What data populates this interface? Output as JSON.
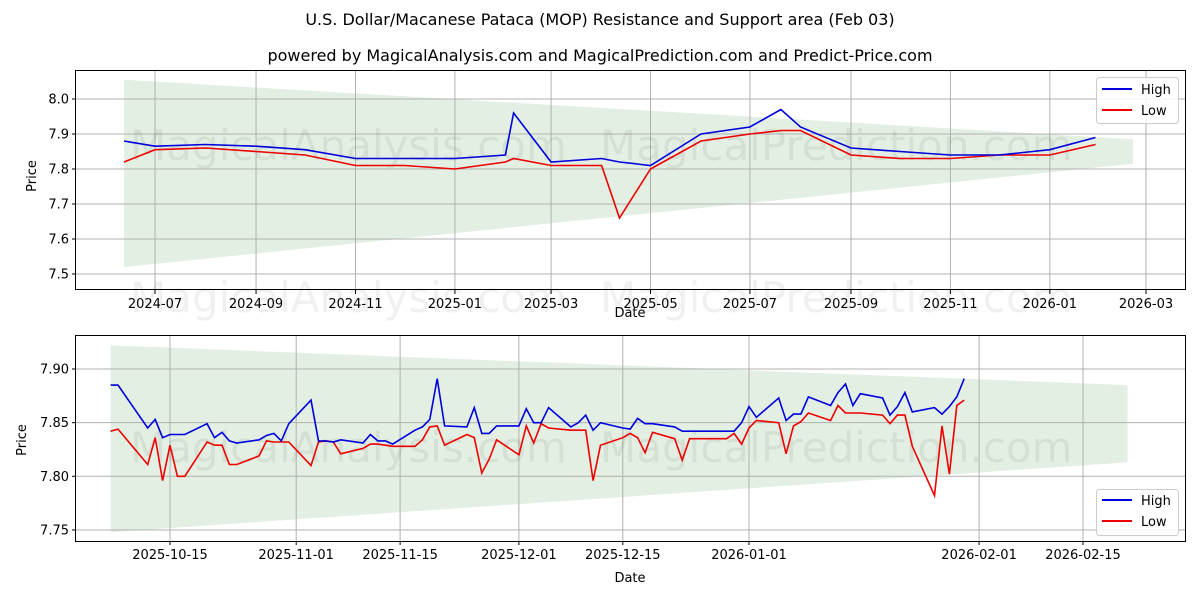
{
  "title": "U.S. Dollar/Macanese Pataca (MOP) Resistance and Support area (Feb 03)",
  "subtitle": "powered by MagicalAnalysis.com and MagicalPrediction.com and Predict-Price.com",
  "watermark": "MagicalAnalysis.com   MagicalPrediction.com",
  "colors": {
    "high": "#0000dd",
    "low": "#ee0000",
    "band": "#e3efe3",
    "grid": "#b0b0b0"
  },
  "top": {
    "xlabel": "Date",
    "ylabel": "Price",
    "yticks": [
      "7.5",
      "7.6",
      "7.7",
      "7.8",
      "7.9",
      "8.0"
    ],
    "xticks": [
      "2024-07",
      "2024-09",
      "2024-11",
      "2025-01",
      "2025-03",
      "2025-05",
      "2025-07",
      "2025-09",
      "2025-11",
      "2026-01",
      "2026-03"
    ],
    "legend": {
      "high": "High",
      "low": "Low"
    }
  },
  "bottom": {
    "xlabel": "Date",
    "ylabel": "Price",
    "yticks": [
      "7.75",
      "7.80",
      "7.85",
      "7.90"
    ],
    "xticks": [
      "2025-10-15",
      "2025-11-01",
      "2025-11-15",
      "2025-12-01",
      "2025-12-15",
      "2026-01-01",
      "2026-02-01",
      "2026-02-15"
    ],
    "legend": {
      "high": "High",
      "low": "Low"
    }
  },
  "chart_data": [
    {
      "type": "line",
      "title": "U.S. Dollar/Macanese Pataca (MOP) Resistance and Support area (Feb 03)",
      "xlabel": "Date",
      "ylabel": "Price",
      "ylim": [
        7.49,
        8.09
      ],
      "x": [
        "2024-06-12",
        "2024-07-01",
        "2024-08-01",
        "2024-09-01",
        "2024-10-01",
        "2024-11-01",
        "2024-12-01",
        "2025-01-01",
        "2025-02-01",
        "2025-02-06",
        "2025-03-01",
        "2025-04-01",
        "2025-04-12",
        "2025-05-01",
        "2025-06-01",
        "2025-07-01",
        "2025-07-20",
        "2025-08-01",
        "2025-09-01",
        "2025-10-01",
        "2025-11-01",
        "2025-12-01",
        "2026-01-01",
        "2026-01-29"
      ],
      "series": [
        {
          "name": "High",
          "values": [
            7.88,
            7.865,
            7.87,
            7.865,
            7.855,
            7.83,
            7.83,
            7.83,
            7.84,
            7.96,
            7.82,
            7.83,
            7.82,
            7.81,
            7.9,
            7.92,
            7.97,
            7.92,
            7.86,
            7.85,
            7.84,
            7.84,
            7.855,
            7.89
          ]
        },
        {
          "name": "Low",
          "values": [
            7.82,
            7.855,
            7.86,
            7.85,
            7.84,
            7.81,
            7.81,
            7.8,
            7.82,
            7.83,
            7.81,
            7.81,
            7.66,
            7.8,
            7.88,
            7.9,
            7.91,
            7.91,
            7.84,
            7.83,
            7.83,
            7.84,
            7.84,
            7.87
          ]
        }
      ],
      "band": {
        "x_start": "2024-06-12",
        "x_end": "2026-02-21",
        "upper": [
          8.055,
          7.885
        ],
        "lower": [
          7.52,
          7.815
        ],
        "label": "Resistance and Support area"
      },
      "legend_position": "upper right",
      "grid": true
    },
    {
      "type": "line",
      "title": "U.S. Dollar/Macanese Pataca (MOP) Resistance and Support area (Feb 03) - zoom",
      "xlabel": "Date",
      "ylabel": "Price",
      "ylim": [
        7.74,
        7.93
      ],
      "x": [
        "2025-10-07",
        "2025-10-08",
        "2025-10-12",
        "2025-10-13",
        "2025-10-14",
        "2025-10-15",
        "2025-10-16",
        "2025-10-17",
        "2025-10-20",
        "2025-10-21",
        "2025-10-22",
        "2025-10-23",
        "2025-10-24",
        "2025-10-27",
        "2025-10-28",
        "2025-10-29",
        "2025-10-30",
        "2025-10-31",
        "2025-11-03",
        "2025-11-04",
        "2025-11-05",
        "2025-11-06",
        "2025-11-07",
        "2025-11-10",
        "2025-11-11",
        "2025-11-12",
        "2025-11-13",
        "2025-11-14",
        "2025-11-17",
        "2025-11-18",
        "2025-11-19",
        "2025-11-20",
        "2025-11-21",
        "2025-11-24",
        "2025-11-25",
        "2025-11-26",
        "2025-11-27",
        "2025-11-28",
        "2025-12-01",
        "2025-12-02",
        "2025-12-03",
        "2025-12-04",
        "2025-12-05",
        "2025-12-08",
        "2025-12-09",
        "2025-12-10",
        "2025-12-11",
        "2025-12-12",
        "2025-12-15",
        "2025-12-16",
        "2025-12-17",
        "2025-12-18",
        "2025-12-19",
        "2025-12-22",
        "2025-12-23",
        "2025-12-24",
        "2025-12-29",
        "2025-12-30",
        "2025-12-31",
        "2026-01-01",
        "2026-01-02",
        "2026-01-05",
        "2026-01-06",
        "2026-01-07",
        "2026-01-08",
        "2026-01-09",
        "2026-01-12",
        "2026-01-13",
        "2026-01-14",
        "2026-01-15",
        "2026-01-16",
        "2026-01-19",
        "2026-01-20",
        "2026-01-21",
        "2026-01-22",
        "2026-01-23",
        "2026-01-26",
        "2026-01-27",
        "2026-01-28",
        "2026-01-29",
        "2026-01-30"
      ],
      "series": [
        {
          "name": "High",
          "values": [
            7.885,
            7.885,
            7.845,
            7.853,
            7.836,
            7.839,
            7.839,
            7.839,
            7.849,
            7.836,
            7.841,
            7.833,
            7.831,
            7.834,
            7.838,
            7.84,
            7.833,
            7.849,
            7.871,
            7.833,
            7.833,
            7.832,
            7.834,
            7.831,
            7.839,
            7.833,
            7.833,
            7.83,
            7.843,
            7.846,
            7.853,
            7.891,
            7.847,
            7.846,
            7.864,
            7.84,
            7.84,
            7.847,
            7.847,
            7.863,
            7.85,
            7.85,
            7.864,
            7.846,
            7.85,
            7.857,
            7.843,
            7.85,
            7.845,
            7.844,
            7.854,
            7.849,
            7.849,
            7.846,
            7.842,
            7.842,
            7.842,
            7.842,
            7.85,
            7.865,
            7.855,
            7.873,
            7.852,
            7.858,
            7.858,
            7.874,
            7.866,
            7.878,
            7.886,
            7.866,
            7.877,
            7.873,
            7.857,
            7.865,
            7.878,
            7.86,
            7.864,
            7.858,
            7.865,
            7.874,
            7.891
          ]
        },
        {
          "name": "Low",
          "values": [
            7.842,
            7.844,
            7.811,
            7.836,
            7.796,
            7.829,
            7.8,
            7.8,
            7.832,
            7.829,
            7.829,
            7.811,
            7.811,
            7.819,
            7.833,
            7.832,
            7.832,
            7.832,
            7.81,
            7.832,
            7.833,
            7.832,
            7.821,
            7.826,
            7.83,
            7.83,
            7.829,
            7.828,
            7.828,
            7.834,
            7.846,
            7.847,
            7.829,
            7.839,
            7.836,
            7.803,
            7.816,
            7.834,
            7.82,
            7.847,
            7.831,
            7.849,
            7.845,
            7.843,
            7.843,
            7.843,
            7.796,
            7.829,
            7.836,
            7.84,
            7.836,
            7.822,
            7.841,
            7.835,
            7.815,
            7.835,
            7.835,
            7.84,
            7.83,
            7.845,
            7.852,
            7.85,
            7.821,
            7.847,
            7.851,
            7.859,
            7.852,
            7.866,
            7.859,
            7.859,
            7.859,
            7.857,
            7.849,
            7.857,
            7.857,
            7.828,
            7.782,
            7.847,
            7.802,
            7.866,
            7.871
          ]
        }
      ],
      "band": {
        "x_start": "2025-10-07",
        "x_end": "2026-02-21",
        "upper": [
          7.922,
          7.885
        ],
        "lower": [
          7.748,
          7.813
        ],
        "label": "Resistance and Support area"
      },
      "legend_position": "lower right",
      "grid": true
    }
  ]
}
